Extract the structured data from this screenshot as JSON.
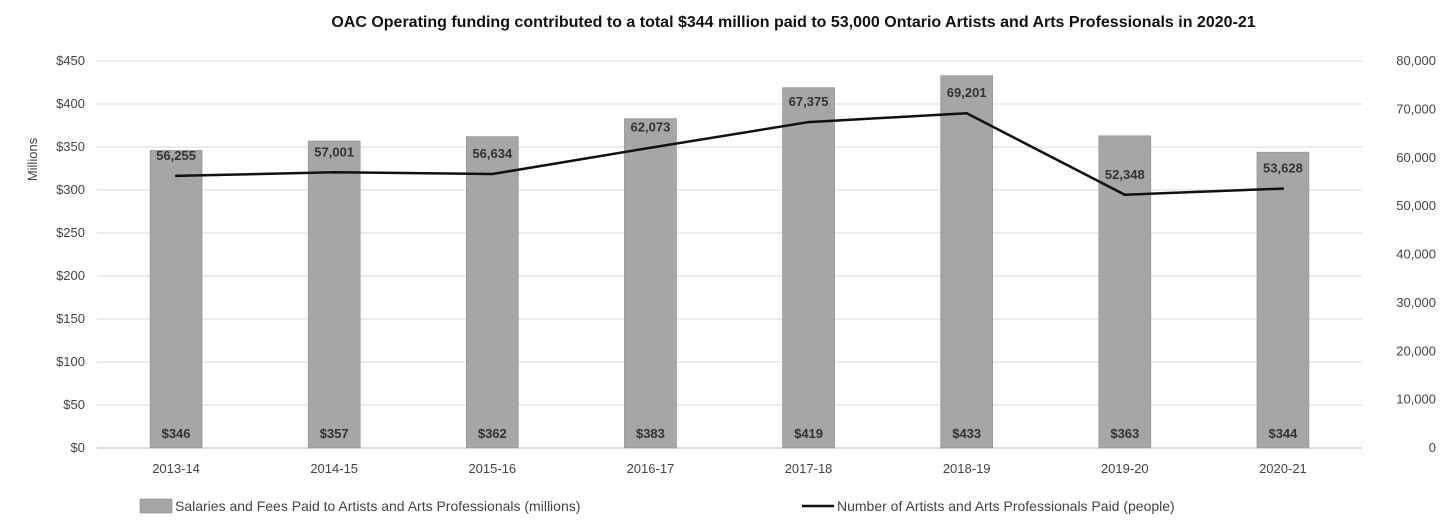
{
  "chart_data": {
    "type": "bar",
    "title": "OAC Operating funding contributed to a total $344 million paid to 53,000 Ontario Artists and Arts Professionals in 2020-21",
    "categories": [
      "2013-14",
      "2014-15",
      "2015-16",
      "2016-17",
      "2017-18",
      "2018-19",
      "2019-20",
      "2020-21"
    ],
    "series": [
      {
        "name": "Salaries and Fees Paid to Artists and Arts Professionals (millions)",
        "type": "bar",
        "axis": "left",
        "values": [
          346,
          357,
          362,
          383,
          419,
          433,
          363,
          344
        ],
        "labels": [
          "$346",
          "$357",
          "$362",
          "$383",
          "$419",
          "$433",
          "$363",
          "$344"
        ],
        "color": "#a6a6a6"
      },
      {
        "name": "Number of Artists and Arts Professionals Paid (people)",
        "type": "line",
        "axis": "right",
        "values": [
          56255,
          57001,
          56634,
          62073,
          67375,
          69201,
          52348,
          53628
        ],
        "labels": [
          "56,255",
          "57,001",
          "56,634",
          "62,073",
          "67,375",
          "69,201",
          "52,348",
          "53,628"
        ],
        "color": "#111111"
      }
    ],
    "ylabel": "Millions",
    "ylim": [
      0,
      450
    ],
    "yticks": [
      0,
      50,
      100,
      150,
      200,
      250,
      300,
      350,
      400,
      450
    ],
    "ytick_labels": [
      "$0",
      "$50",
      "$100",
      "$150",
      "$200",
      "$250",
      "$300",
      "$350",
      "$400",
      "$450"
    ],
    "y2lim": [
      0,
      80000
    ],
    "y2ticks": [
      0,
      10000,
      20000,
      30000,
      40000,
      50000,
      60000,
      70000,
      80000
    ],
    "y2tick_labels": [
      "0",
      "10,000",
      "20,000",
      "30,000",
      "40,000",
      "50,000",
      "60,000",
      "70,000",
      "80,000"
    ],
    "grid": true,
    "legend_position": "bottom"
  }
}
